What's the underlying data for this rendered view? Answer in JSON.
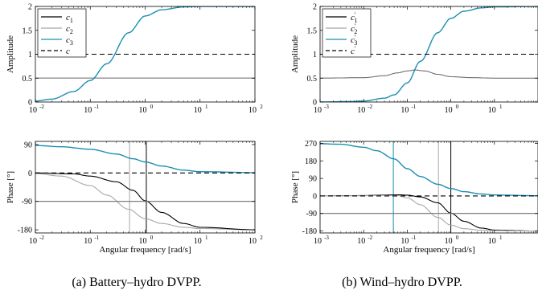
{
  "colors": {
    "black": "#000000",
    "gray": "#a8a8a8",
    "blue": "#1a8fb0",
    "dark_gray": "#707070"
  },
  "captions": {
    "a": "(a) Battery–hydro DVPP.",
    "b": "(b) Wind–hydro DVPP."
  },
  "chart_data": [
    {
      "id": "a-amp",
      "type": "line",
      "xscale": "log",
      "xlim": [
        0.01,
        100
      ],
      "ylim": [
        0,
        2
      ],
      "ylabel": "Amplitude",
      "xlabel": "",
      "xticks": [
        0.01,
        0.1,
        1,
        10,
        100
      ],
      "xtick_labels": [
        "10",
        "10",
        "10",
        "10",
        "10"
      ],
      "xtick_exps": [
        "-2",
        "-1",
        "0",
        "1",
        "2"
      ],
      "yticks": [
        0,
        0.5,
        1,
        1.5,
        2
      ],
      "ytick_labels": [
        "0",
        "0.5",
        "1",
        "1.5",
        "2"
      ],
      "grid": false,
      "legend_position": "top-left",
      "legend": [
        {
          "base": "c",
          "sub": "1",
          "prime": false,
          "color_key": "black",
          "dash": false
        },
        {
          "base": "c",
          "sub": "2",
          "prime": false,
          "color_key": "gray",
          "dash": false
        },
        {
          "base": "c",
          "sub": "3",
          "prime": false,
          "color_key": "blue",
          "dash": false
        },
        {
          "base": "c",
          "sub": "",
          "prime": false,
          "color_key": "black",
          "dash": true
        }
      ],
      "series": [
        {
          "color_key": "black",
          "x": [
            0.01,
            100
          ],
          "y": [
            0.5,
            0.5
          ]
        },
        {
          "color_key": "gray",
          "x": [
            0.01,
            100
          ],
          "y": [
            0.5,
            0.5
          ]
        },
        {
          "color_key": "blue",
          "x": [
            0.01,
            0.02,
            0.05,
            0.1,
            0.2,
            0.5,
            1,
            2,
            5,
            10,
            100
          ],
          "y": [
            0.02,
            0.06,
            0.22,
            0.45,
            0.8,
            1.45,
            1.8,
            1.93,
            1.99,
            2.0,
            2.0
          ]
        },
        {
          "color_key": "black",
          "dash": true,
          "x": [
            0.01,
            100
          ],
          "y": [
            1,
            1
          ]
        }
      ],
      "vlines": []
    },
    {
      "id": "a-phase",
      "type": "line",
      "xscale": "log",
      "xlim": [
        0.01,
        100
      ],
      "ylim": [
        -190,
        100
      ],
      "ylabel": "Phase [°]",
      "xlabel": "Angular frequency [rad/s]",
      "xticks": [
        0.01,
        0.1,
        1,
        10,
        100
      ],
      "xtick_labels": [
        "10",
        "10",
        "10",
        "10",
        "10"
      ],
      "xtick_exps": [
        "-2",
        "-1",
        "0",
        "1",
        "2"
      ],
      "yticks": [
        90,
        0,
        -90,
        -180
      ],
      "ytick_labels": [
        "90",
        "0",
        "-90",
        "-180"
      ],
      "grid": false,
      "series": [
        {
          "color_key": "blue",
          "x": [
            0.01,
            0.03,
            0.1,
            0.3,
            0.6,
            1,
            2,
            5,
            10,
            100
          ],
          "y": [
            87,
            83,
            75,
            60,
            45,
            35,
            22,
            9,
            4,
            1
          ]
        },
        {
          "color_key": "gray",
          "x": [
            0.01,
            0.03,
            0.1,
            0.2,
            0.5,
            1,
            2,
            5,
            10,
            100
          ],
          "y": [
            -2,
            -10,
            -40,
            -70,
            -115,
            -145,
            -160,
            -172,
            -176,
            -180
          ]
        },
        {
          "color_key": "black",
          "x": [
            0.01,
            0.05,
            0.1,
            0.3,
            0.6,
            1,
            2,
            5,
            10,
            100
          ],
          "y": [
            0,
            -3,
            -10,
            -28,
            -55,
            -88,
            -125,
            -160,
            -172,
            -180
          ]
        },
        {
          "color_key": "black",
          "dash": true,
          "x": [
            0.01,
            100
          ],
          "y": [
            0,
            0
          ]
        },
        {
          "color_key": "dark_gray",
          "x": [
            0.01,
            100
          ],
          "y": [
            -90,
            -90
          ]
        }
      ],
      "vlines": [
        {
          "color_key": "gray",
          "x": 0.52
        },
        {
          "color_key": "black",
          "x": 1.05
        }
      ]
    },
    {
      "id": "b-amp",
      "type": "line",
      "xscale": "log",
      "xlim": [
        0.001,
        100
      ],
      "ylim": [
        0,
        2
      ],
      "ylabel": "Amplitude",
      "xlabel": "",
      "xticks": [
        0.001,
        0.01,
        0.1,
        1,
        10
      ],
      "xtick_labels": [
        "10",
        "10",
        "10",
        "10",
        "10"
      ],
      "xtick_exps": [
        "-3",
        "-2",
        "-1",
        "0",
        "1"
      ],
      "yticks": [
        0,
        0.5,
        1,
        1.5,
        2
      ],
      "ytick_labels": [
        "0",
        "0.5",
        "1",
        "1.5",
        "2"
      ],
      "grid": false,
      "legend_position": "top-left",
      "legend": [
        {
          "base": "c",
          "sub": "1",
          "prime": true,
          "color_key": "black",
          "dash": false
        },
        {
          "base": "c",
          "sub": "2",
          "prime": true,
          "color_key": "gray",
          "dash": false
        },
        {
          "base": "c",
          "sub": "3",
          "prime": true,
          "color_key": "blue",
          "dash": false
        },
        {
          "base": "c",
          "sub": "",
          "prime": true,
          "color_key": "black",
          "dash": true
        }
      ],
      "series": [
        {
          "color_key": "dark_gray",
          "x": [
            0.001,
            0.01,
            0.03,
            0.06,
            0.1,
            0.15,
            0.25,
            0.5,
            1,
            3,
            10,
            100
          ],
          "y": [
            0.5,
            0.51,
            0.55,
            0.61,
            0.65,
            0.67,
            0.65,
            0.58,
            0.53,
            0.51,
            0.5,
            0.5
          ]
        },
        {
          "color_key": "blue",
          "x": [
            0.001,
            0.005,
            0.01,
            0.03,
            0.05,
            0.1,
            0.2,
            0.5,
            1,
            2,
            5,
            10,
            100
          ],
          "y": [
            0.0,
            0.01,
            0.02,
            0.08,
            0.15,
            0.4,
            0.85,
            1.45,
            1.75,
            1.9,
            1.97,
            1.99,
            2.0
          ]
        },
        {
          "color_key": "black",
          "dash": true,
          "x": [
            0.001,
            100
          ],
          "y": [
            1,
            1
          ]
        }
      ],
      "vlines": []
    },
    {
      "id": "b-phase",
      "type": "line",
      "xscale": "log",
      "xlim": [
        0.001,
        100
      ],
      "ylim": [
        -190,
        280
      ],
      "ylabel": "Phase [°]",
      "xlabel": "Angular frequency [rad/s]",
      "xticks": [
        0.001,
        0.01,
        0.1,
        1,
        10
      ],
      "xtick_labels": [
        "10",
        "10",
        "10",
        "10",
        "10"
      ],
      "xtick_exps": [
        "-3",
        "-2",
        "-1",
        "0",
        "1"
      ],
      "yticks": [
        270,
        180,
        90,
        0,
        -90,
        -180
      ],
      "ytick_labels": [
        "270",
        "180",
        "90",
        "0",
        "-90",
        "-180"
      ],
      "grid": false,
      "series": [
        {
          "color_key": "blue",
          "x": [
            0.001,
            0.003,
            0.01,
            0.02,
            0.05,
            0.1,
            0.2,
            0.5,
            1,
            2,
            5,
            10,
            100
          ],
          "y": [
            268,
            265,
            250,
            232,
            190,
            140,
            100,
            60,
            38,
            22,
            10,
            5,
            1
          ]
        },
        {
          "color_key": "black",
          "x": [
            0.001,
            0.01,
            0.03,
            0.06,
            0.1,
            0.2,
            0.5,
            1,
            2,
            5,
            10,
            100
          ],
          "y": [
            0,
            2,
            5,
            6,
            4,
            -5,
            -35,
            -88,
            -130,
            -165,
            -175,
            -180
          ]
        },
        {
          "color_key": "gray",
          "x": [
            0.001,
            0.01,
            0.03,
            0.06,
            0.1,
            0.2,
            0.5,
            1,
            2,
            5,
            10,
            100
          ],
          "y": [
            0,
            1,
            3,
            2,
            -10,
            -45,
            -110,
            -150,
            -168,
            -176,
            -178,
            -180
          ]
        },
        {
          "color_key": "black",
          "dash": true,
          "x": [
            0.001,
            100
          ],
          "y": [
            0,
            0
          ]
        },
        {
          "color_key": "dark_gray",
          "x": [
            0.001,
            100
          ],
          "y": [
            -90,
            -90
          ]
        }
      ],
      "vlines": [
        {
          "color_key": "blue",
          "x": 0.048
        },
        {
          "color_key": "gray",
          "x": 0.52
        },
        {
          "color_key": "black",
          "x": 1.0
        }
      ]
    }
  ]
}
